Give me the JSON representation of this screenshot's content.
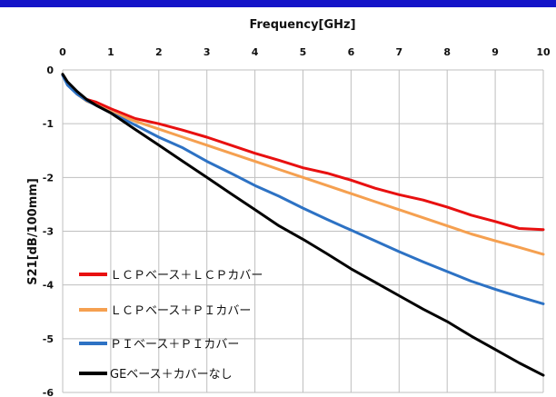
{
  "chart_data": {
    "type": "line",
    "title": "",
    "xlabel": "Frequency[GHz]",
    "ylabel": "S21[dB/100mm]",
    "xlim": [
      0,
      10
    ],
    "ylim": [
      -6,
      0
    ],
    "x_ticks": [
      0,
      1,
      2,
      3,
      4,
      5,
      6,
      7,
      8,
      9,
      10
    ],
    "y_ticks": [
      0,
      -1,
      -2,
      -3,
      -4,
      -5,
      -6
    ],
    "grid": true,
    "x_axis_position": "top",
    "legend_position": "bottom-left",
    "series": [
      {
        "name": "ＬＣＰベース＋ＬＣＰカバー",
        "color": "#e81010",
        "x": [
          0,
          0.1,
          0.3,
          0.5,
          0.7,
          1.0,
          1.5,
          2.0,
          2.5,
          3.0,
          3.5,
          4.0,
          4.5,
          5.0,
          5.5,
          6.0,
          6.5,
          7.0,
          7.5,
          8.0,
          8.5,
          9.0,
          9.5,
          10.0
        ],
        "y": [
          -0.1,
          -0.25,
          -0.45,
          -0.55,
          -0.6,
          -0.72,
          -0.9,
          -1.0,
          -1.12,
          -1.25,
          -1.4,
          -1.55,
          -1.68,
          -1.82,
          -1.92,
          -2.05,
          -2.2,
          -2.32,
          -2.42,
          -2.55,
          -2.7,
          -2.82,
          -2.95,
          -2.97
        ]
      },
      {
        "name": "ＬＣＰベース＋ＰＩカバー",
        "color": "#f5a050",
        "x": [
          0,
          0.1,
          0.3,
          0.5,
          0.7,
          1.0,
          1.5,
          2.0,
          2.5,
          3.0,
          3.5,
          4.0,
          4.5,
          5.0,
          5.5,
          6.0,
          6.5,
          7.0,
          7.5,
          8.0,
          8.5,
          9.0,
          9.5,
          10.0
        ],
        "y": [
          -0.1,
          -0.25,
          -0.45,
          -0.58,
          -0.65,
          -0.78,
          -0.95,
          -1.1,
          -1.25,
          -1.4,
          -1.55,
          -1.7,
          -1.85,
          -2.0,
          -2.15,
          -2.3,
          -2.45,
          -2.6,
          -2.75,
          -2.9,
          -3.05,
          -3.18,
          -3.3,
          -3.43
        ]
      },
      {
        "name": "ＰＩベース＋ＰＩカバー",
        "color": "#2d72c4",
        "x": [
          0,
          0.1,
          0.3,
          0.5,
          0.7,
          1.0,
          1.5,
          2.0,
          2.5,
          3.0,
          3.5,
          4.0,
          4.5,
          5.0,
          5.5,
          6.0,
          6.5,
          7.0,
          7.5,
          8.0,
          8.5,
          9.0,
          9.5,
          10.0
        ],
        "y": [
          -0.1,
          -0.28,
          -0.45,
          -0.57,
          -0.66,
          -0.8,
          -1.02,
          -1.25,
          -1.45,
          -1.7,
          -1.92,
          -2.15,
          -2.35,
          -2.57,
          -2.78,
          -2.98,
          -3.18,
          -3.38,
          -3.57,
          -3.75,
          -3.93,
          -4.08,
          -4.22,
          -4.35
        ]
      },
      {
        "name": "GEベース＋カバーなし",
        "color": "#000000",
        "x": [
          0,
          0.1,
          0.3,
          0.5,
          0.7,
          1.0,
          1.5,
          2.0,
          2.5,
          3.0,
          3.5,
          4.0,
          4.5,
          5.0,
          5.5,
          6.0,
          6.5,
          7.0,
          7.5,
          8.0,
          8.5,
          9.0,
          9.5,
          10.0
        ],
        "y": [
          -0.08,
          -0.22,
          -0.4,
          -0.55,
          -0.66,
          -0.8,
          -1.1,
          -1.4,
          -1.7,
          -2.0,
          -2.3,
          -2.6,
          -2.9,
          -3.15,
          -3.42,
          -3.7,
          -3.95,
          -4.2,
          -4.45,
          -4.68,
          -4.95,
          -5.2,
          -5.45,
          -5.68
        ]
      }
    ]
  }
}
